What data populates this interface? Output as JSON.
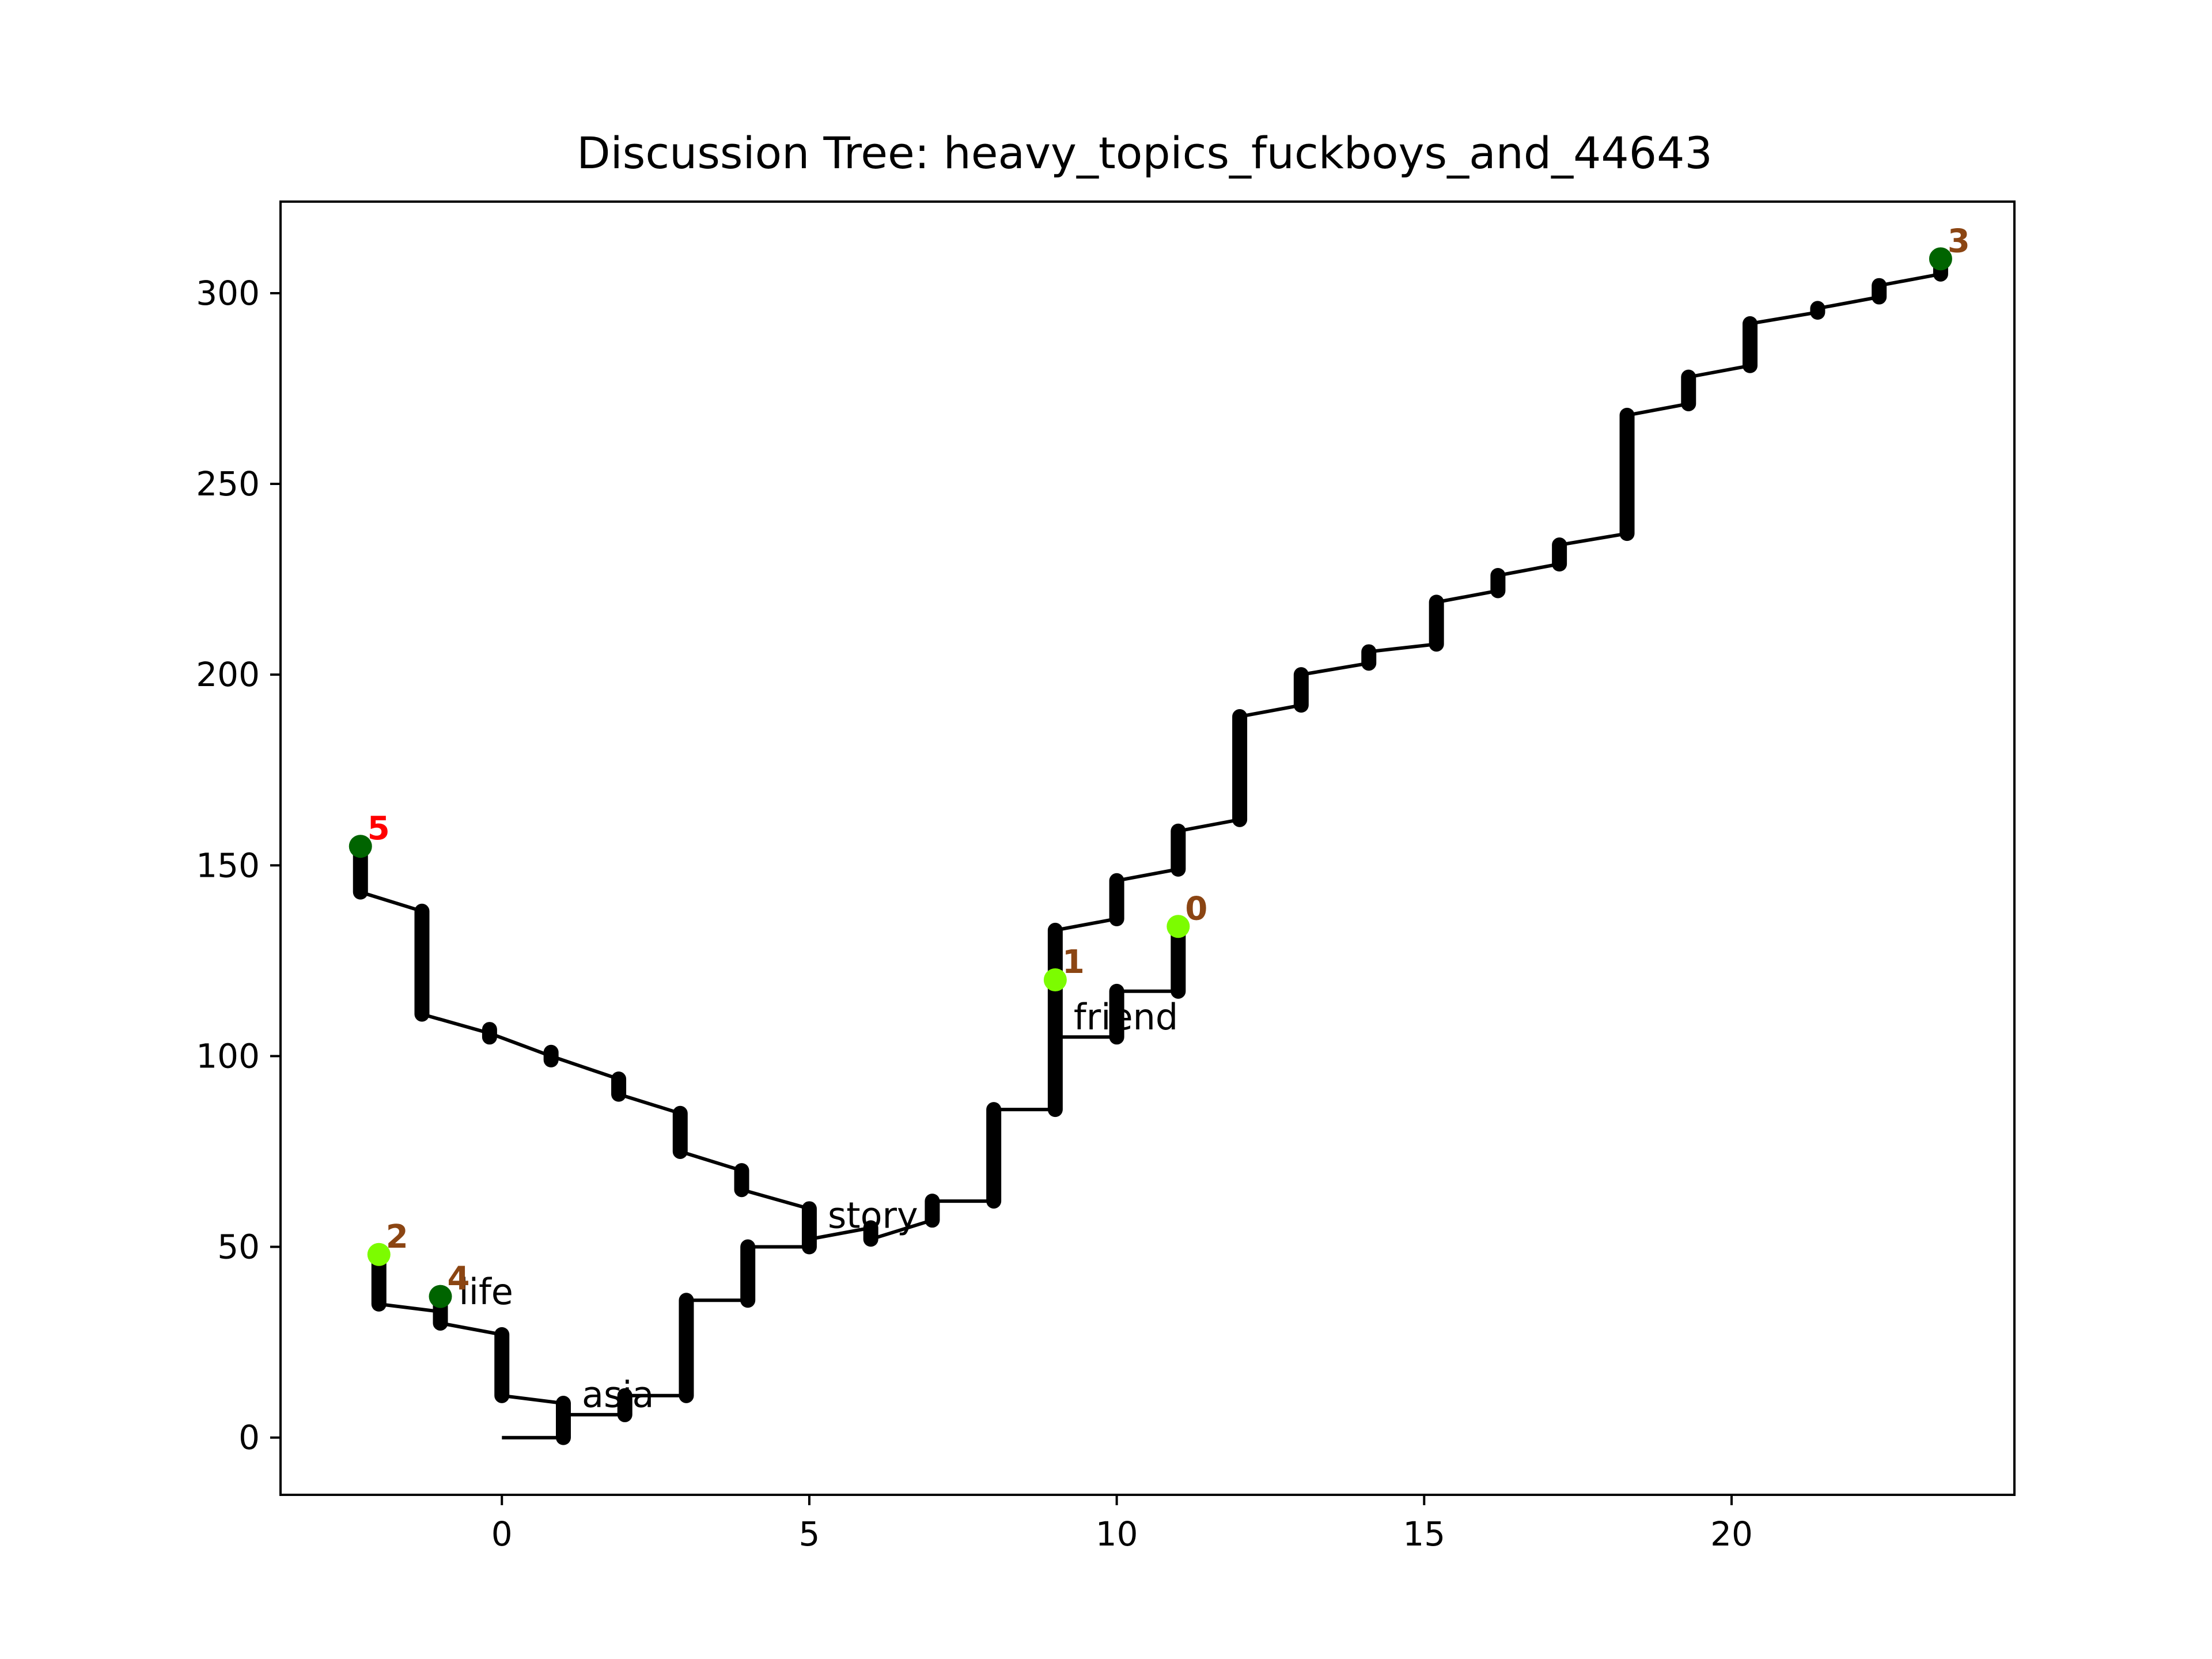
{
  "chart_data": {
    "type": "line",
    "title": "Discussion Tree: heavy_topics_fuckboys_and_44643",
    "xlabel": "",
    "ylabel": "",
    "xlim": [
      -3.6,
      24.6
    ],
    "ylim": [
      -15,
      324
    ],
    "x_ticks": [
      0,
      5,
      10,
      15,
      20
    ],
    "y_ticks": [
      0,
      50,
      100,
      150,
      200,
      250,
      300
    ],
    "grid": false,
    "line_color": "#000000",
    "branches": [
      {
        "name": "",
        "points": [
          [
            -2.3,
            155
          ],
          [
            -2.3,
            143
          ],
          [
            -1.3,
            138
          ],
          [
            -1.3,
            111
          ],
          [
            -0.2,
            106
          ],
          [
            0.8,
            100
          ],
          [
            1.9,
            94
          ],
          [
            1.9,
            90
          ],
          [
            2.9,
            85
          ],
          [
            2.9,
            75
          ],
          [
            3.9,
            70
          ],
          [
            3.9,
            65
          ],
          [
            5.0,
            60
          ],
          [
            5.0,
            50
          ],
          [
            5.0,
            52
          ],
          [
            6.0,
            55
          ],
          [
            6.0,
            52
          ],
          [
            7.0,
            57
          ],
          [
            7.0,
            62
          ],
          [
            8.0,
            62
          ],
          [
            8.0,
            86
          ],
          [
            9.0,
            86
          ],
          [
            9.0,
            133
          ],
          [
            10.0,
            136
          ],
          [
            10.0,
            146
          ],
          [
            11.0,
            149
          ],
          [
            11.0,
            159
          ],
          [
            12.0,
            162
          ],
          [
            12.0,
            189
          ],
          [
            13.0,
            192
          ],
          [
            13.0,
            200
          ],
          [
            14.1,
            203
          ],
          [
            14.1,
            206
          ],
          [
            15.2,
            208
          ],
          [
            15.2,
            219
          ],
          [
            16.2,
            222
          ],
          [
            16.2,
            226
          ],
          [
            17.2,
            229
          ],
          [
            17.2,
            234
          ],
          [
            18.3,
            237
          ],
          [
            18.3,
            268
          ],
          [
            19.3,
            271
          ],
          [
            19.3,
            278
          ],
          [
            20.3,
            281
          ],
          [
            20.3,
            292
          ],
          [
            21.4,
            295
          ],
          [
            21.4,
            296
          ],
          [
            22.4,
            299
          ],
          [
            22.4,
            302
          ],
          [
            23.4,
            305
          ],
          [
            23.4,
            309
          ]
        ]
      },
      {
        "name": "",
        "points": [
          [
            -2.0,
            48
          ],
          [
            -2.0,
            35
          ],
          [
            -1.0,
            33
          ],
          [
            -1.0,
            30
          ],
          [
            0.0,
            27
          ],
          [
            0.0,
            11
          ],
          [
            1.0,
            9
          ],
          [
            1.0,
            6
          ],
          [
            2.0,
            6
          ],
          [
            2.0,
            11
          ],
          [
            3.0,
            11
          ],
          [
            3.0,
            36
          ],
          [
            4.0,
            36
          ],
          [
            4.0,
            50
          ],
          [
            5.0,
            50
          ]
        ]
      },
      {
        "name": "",
        "points": [
          [
            0.0,
            0
          ],
          [
            1.0,
            0
          ],
          [
            1.0,
            9
          ]
        ]
      },
      {
        "name": "",
        "points": [
          [
            9.0,
            120
          ],
          [
            9.0,
            105
          ],
          [
            10.0,
            105
          ],
          [
            10.0,
            117
          ],
          [
            11.0,
            117
          ],
          [
            11.0,
            134
          ]
        ]
      }
    ],
    "thick_segments": [
      [
        [
          -2.3,
          155
        ],
        [
          -2.3,
          143
        ]
      ],
      [
        [
          -1.3,
          138
        ],
        [
          -1.3,
          111
        ]
      ],
      [
        [
          -0.2,
          105
        ],
        [
          -0.2,
          107
        ]
      ],
      [
        [
          0.8,
          99
        ],
        [
          0.8,
          101
        ]
      ],
      [
        [
          1.9,
          90
        ],
        [
          1.9,
          94
        ]
      ],
      [
        [
          2.9,
          75
        ],
        [
          2.9,
          85
        ]
      ],
      [
        [
          3.9,
          65
        ],
        [
          3.9,
          70
        ]
      ],
      [
        [
          5.0,
          50
        ],
        [
          5.0,
          60
        ]
      ],
      [
        [
          6.0,
          52
        ],
        [
          6.0,
          55
        ]
      ],
      [
        [
          7.0,
          57
        ],
        [
          7.0,
          62
        ]
      ],
      [
        [
          8.0,
          62
        ],
        [
          8.0,
          86
        ]
      ],
      [
        [
          9.0,
          86
        ],
        [
          9.0,
          133
        ]
      ],
      [
        [
          10.0,
          136
        ],
        [
          10.0,
          146
        ]
      ],
      [
        [
          10.0,
          105
        ],
        [
          10.0,
          117
        ]
      ],
      [
        [
          11.0,
          117
        ],
        [
          11.0,
          134
        ]
      ],
      [
        [
          11.0,
          149
        ],
        [
          11.0,
          159
        ]
      ],
      [
        [
          12.0,
          162
        ],
        [
          12.0,
          189
        ]
      ],
      [
        [
          13.0,
          192
        ],
        [
          13.0,
          200
        ]
      ],
      [
        [
          14.1,
          203
        ],
        [
          14.1,
          206
        ]
      ],
      [
        [
          15.2,
          208
        ],
        [
          15.2,
          219
        ]
      ],
      [
        [
          16.2,
          222
        ],
        [
          16.2,
          226
        ]
      ],
      [
        [
          17.2,
          229
        ],
        [
          17.2,
          234
        ]
      ],
      [
        [
          18.3,
          237
        ],
        [
          18.3,
          268
        ]
      ],
      [
        [
          19.3,
          271
        ],
        [
          19.3,
          278
        ]
      ],
      [
        [
          20.3,
          281
        ],
        [
          20.3,
          292
        ]
      ],
      [
        [
          21.4,
          295
        ],
        [
          21.4,
          296
        ]
      ],
      [
        [
          22.4,
          299
        ],
        [
          22.4,
          302
        ]
      ],
      [
        [
          23.4,
          305
        ],
        [
          23.4,
          307
        ]
      ],
      [
        [
          -2.0,
          35
        ],
        [
          -2.0,
          47
        ]
      ],
      [
        [
          -1.0,
          30
        ],
        [
          -1.0,
          36
        ]
      ],
      [
        [
          0.0,
          11
        ],
        [
          0.0,
          27
        ]
      ],
      [
        [
          1.0,
          0
        ],
        [
          1.0,
          9
        ]
      ],
      [
        [
          2.0,
          6
        ],
        [
          2.0,
          11
        ]
      ],
      [
        [
          3.0,
          11
        ],
        [
          3.0,
          36
        ]
      ],
      [
        [
          4.0,
          36
        ],
        [
          4.0,
          50
        ]
      ]
    ],
    "nodes": [
      {
        "label": "0",
        "x": 11.0,
        "y": 134,
        "color": "#7cfc00",
        "label_color": "#8b4513"
      },
      {
        "label": "1",
        "x": 9.0,
        "y": 120,
        "color": "#7cfc00",
        "label_color": "#8b4513"
      },
      {
        "label": "2",
        "x": -2.0,
        "y": 48,
        "color": "#7cfc00",
        "label_color": "#8b4513"
      },
      {
        "label": "3",
        "x": 23.4,
        "y": 309,
        "color": "#006400",
        "label_color": "#8b4513"
      },
      {
        "label": "4",
        "x": -1.0,
        "y": 37,
        "color": "#006400",
        "label_color": "#8b4513"
      },
      {
        "label": "5",
        "x": -2.3,
        "y": 155,
        "color": "#006400",
        "label_color": "#ff0000"
      }
    ],
    "annotations": [
      {
        "text": "story",
        "x": 5.3,
        "y": 55
      },
      {
        "text": "friend",
        "x": 9.3,
        "y": 107
      },
      {
        "text": "life",
        "x": -0.7,
        "y": 35
      },
      {
        "text": "asia",
        "x": 1.3,
        "y": 8
      }
    ]
  }
}
